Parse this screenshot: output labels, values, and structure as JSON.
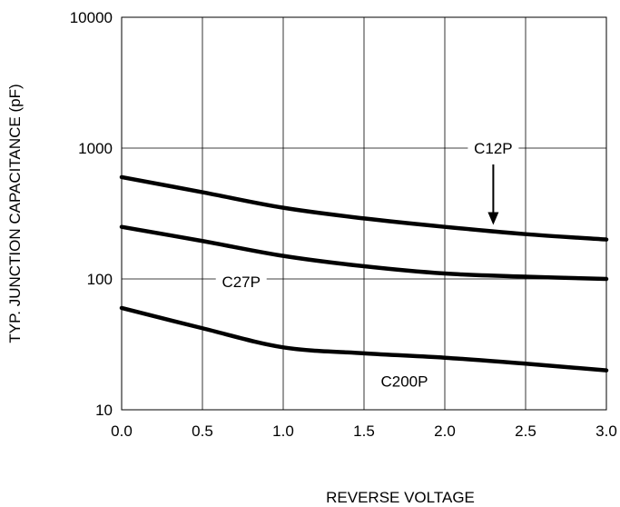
{
  "chart_data": {
    "type": "line",
    "xlabel": "REVERSE VOLTAGE",
    "ylabel": "TYP. JUNCTION CAPACITANCE (pF)",
    "xlim": [
      0,
      3.0
    ],
    "ylim": [
      10,
      10000
    ],
    "yscale": "log",
    "grid": true,
    "x_ticks": [
      "0.0",
      "0.5",
      "1.0",
      "1.5",
      "2.0",
      "2.5",
      "3.0"
    ],
    "y_ticks": [
      "10",
      "100",
      "1000",
      "10000"
    ],
    "series": [
      {
        "name": "C12P",
        "x": [
          0.0,
          0.5,
          1.0,
          1.5,
          2.0,
          2.5,
          3.0
        ],
        "y": [
          600,
          460,
          350,
          290,
          250,
          220,
          200
        ]
      },
      {
        "name": "C27P",
        "x": [
          0.0,
          0.5,
          1.0,
          1.5,
          2.0,
          2.5,
          3.0
        ],
        "y": [
          250,
          195,
          150,
          125,
          110,
          104,
          100
        ]
      },
      {
        "name": "C200P",
        "x": [
          0.0,
          0.5,
          1.0,
          1.5,
          2.0,
          2.5,
          3.0
        ],
        "y": [
          60,
          42,
          30,
          27,
          25,
          22.5,
          20
        ]
      }
    ],
    "annotations": [
      {
        "text": "C12P",
        "series": "C12P",
        "arrow": true
      },
      {
        "text": "C27P",
        "series": "C27P",
        "arrow": false
      },
      {
        "text": "C200P",
        "series": "C200P",
        "arrow": false
      }
    ]
  }
}
